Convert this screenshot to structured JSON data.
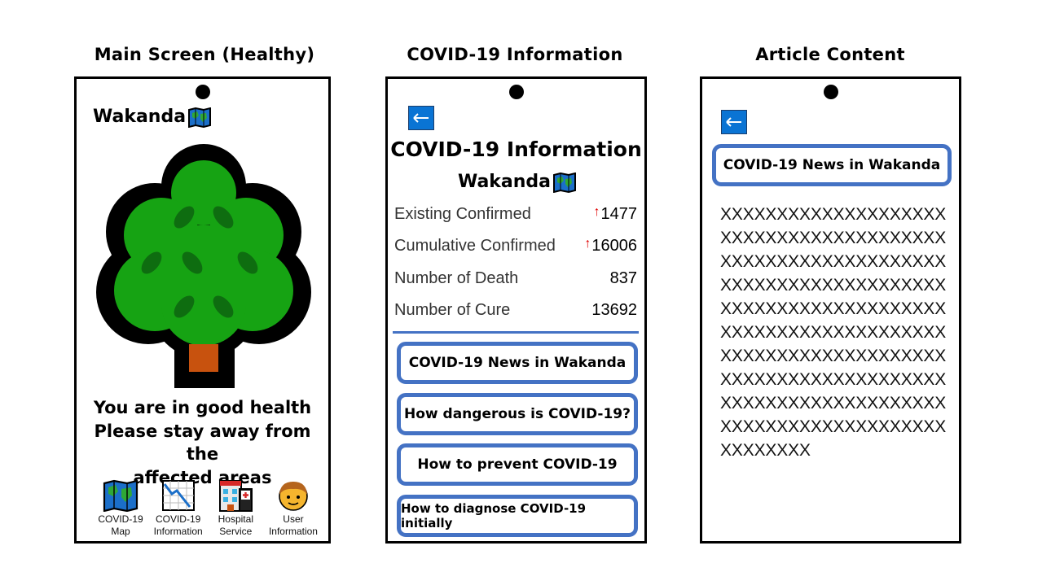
{
  "captions": {
    "main": "Main Screen (Healthy)",
    "info": "COVID-19 Information",
    "article": "Article Content"
  },
  "main_screen": {
    "brand": "Wakanda",
    "health_lines": [
      "You are in good health",
      "Please stay away from the",
      "affected areas"
    ],
    "nav": [
      {
        "line1": "COVID-19",
        "line2": "Map",
        "icon": "map-icon"
      },
      {
        "line1": "COVID-19",
        "line2": "Information",
        "icon": "chart-down-icon"
      },
      {
        "line1": "Hospital",
        "line2": "Service",
        "icon": "hospital-icon"
      },
      {
        "line1": "User",
        "line2": "Information",
        "icon": "user-icon"
      }
    ]
  },
  "info_screen": {
    "title": "COVID-19 Information",
    "region": "Wakanda",
    "stats": [
      {
        "label": "Existing Confirmed",
        "value": "1477",
        "trend": "↑"
      },
      {
        "label": "Cumulative Confirmed",
        "value": "16006",
        "trend": "↑"
      },
      {
        "label": "Number of Death",
        "value": "837",
        "trend": ""
      },
      {
        "label": "Number of Cure",
        "value": "13692",
        "trend": ""
      }
    ],
    "topics": [
      "COVID-19 News in Wakanda",
      "How dangerous is COVID-19?",
      "How to prevent COVID-19",
      "How to diagnose COVID-19 initially"
    ]
  },
  "article_screen": {
    "title": "COVID-19 News in Wakanda",
    "body": "XXXXXXXXXXXXXXXXXXXXXXXXXXXXXXXXXXXXXXXXXXXXXXXXXXXXXXXXXXXXXXXXXXXXXXXXXXXXXXXXXXXXXXXXXXXXXXXXXXXXXXXXXXXXXXXXXXXXXXXXXXXXXXXXXXXXXXXXXXXXXXXXXXXXXXXXXXXXXXXXXXXXXXXXXXXXXXXXXXXXXXXXXXXXXXXXXXXXXXXXXXXXXXXX"
  },
  "colors": {
    "accent": "#4472c4",
    "back_button": "#0a74d4",
    "tree_green": "#16a313",
    "trunk": "#c8520e",
    "trend_up": "#e00000"
  }
}
